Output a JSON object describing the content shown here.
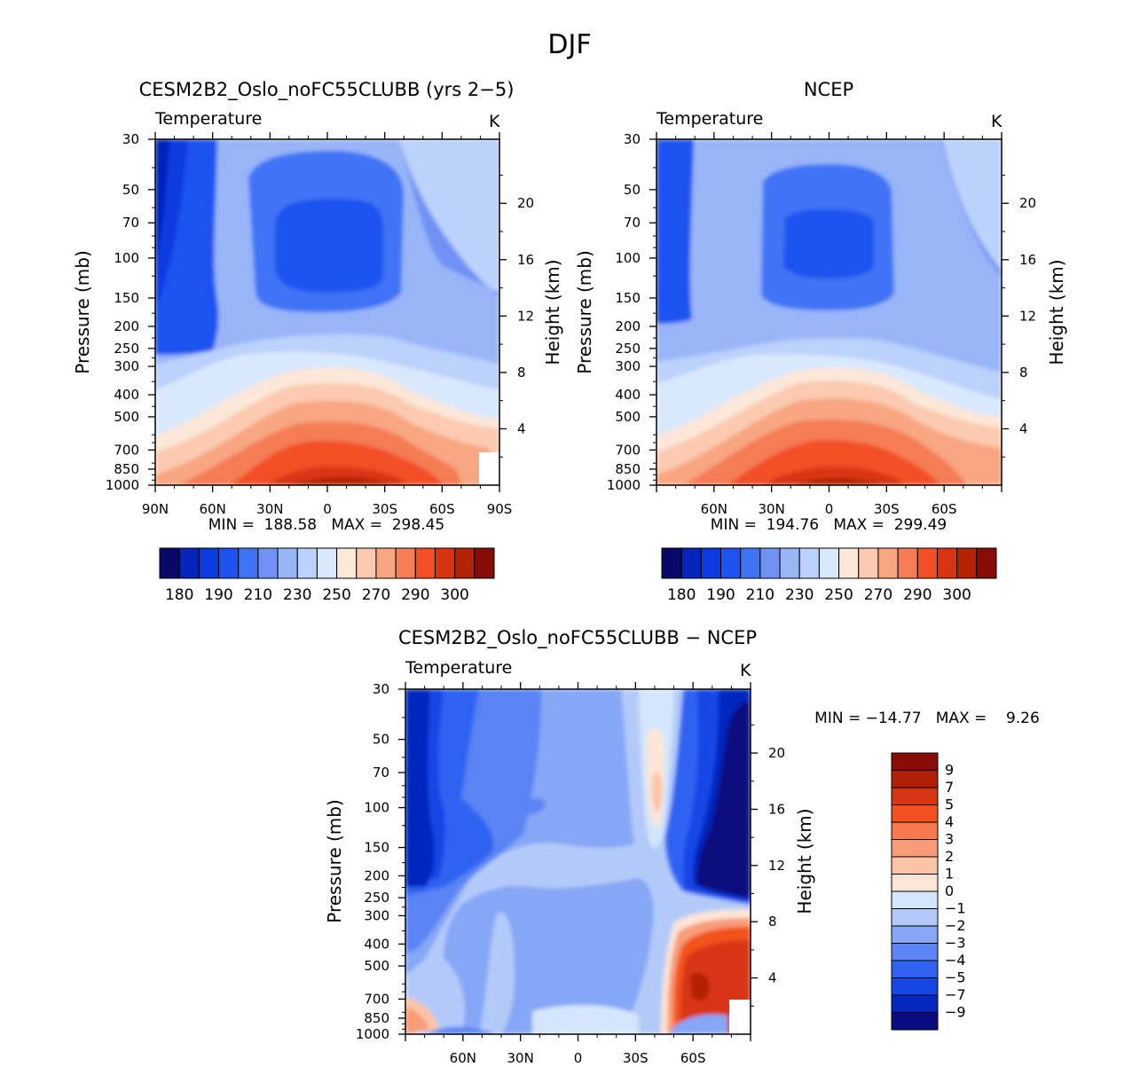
{
  "figure": {
    "title": "DJF"
  },
  "colors": {
    "abs": [
      "#08086b",
      "#0624bb",
      "#0a3ae0",
      "#1e52f0",
      "#3f73f5",
      "#7092f5",
      "#98b5f8",
      "#bcd1fb",
      "#d9e8fc",
      "#fde7d8",
      "#fbcab0",
      "#f8a681",
      "#f57c55",
      "#f24f25",
      "#d83412",
      "#b42204",
      "#870d07"
    ],
    "diff": [
      "#0a0d80",
      "#0628c0",
      "#1546e6",
      "#2f63f2",
      "#5a83f4",
      "#86a6f6",
      "#b3caf9",
      "#d4e6fb",
      "#fde5d6",
      "#fbc5a5",
      "#f89c78",
      "#f5784f",
      "#f2521f",
      "#d83612",
      "#b22006",
      "#8a0c08"
    ]
  },
  "chart_data": [
    {
      "type": "contour",
      "panel_title": "CESM2B2_Oslo_noFC55CLUBB (yrs 2−5)",
      "variable": "Temperature",
      "units": "K",
      "x_tick_labels": [
        "90N",
        "60N",
        "30N",
        "0",
        "30S",
        "60S",
        "90S"
      ],
      "xlim": [
        90,
        -90
      ],
      "ylabel": "Pressure (mb)",
      "y_ticks": [
        30,
        50,
        70,
        100,
        150,
        200,
        250,
        300,
        400,
        500,
        700,
        850,
        1000
      ],
      "ylim": [
        30,
        1000
      ],
      "ylabel_right": "Height (km)",
      "height_ticks": [
        4,
        8,
        12,
        16,
        20
      ],
      "stats_text": "MIN =  188.58   MAX =  298.45",
      "min": 188.58,
      "max": 298.45,
      "levels": [
        180,
        185,
        190,
        200,
        210,
        220,
        230,
        240,
        250,
        260,
        270,
        280,
        290,
        295,
        300
      ],
      "colorbar_labels": [
        "180",
        "190",
        "210",
        "230",
        "250",
        "270",
        "290",
        "300"
      ]
    },
    {
      "type": "contour",
      "panel_title": "NCEP",
      "variable": "Temperature",
      "units": "K",
      "x_tick_labels": [
        "60N",
        "30N",
        "0",
        "30S",
        "60S"
      ],
      "xlim": [
        90,
        -90
      ],
      "ylabel": "Pressure (mb)",
      "y_ticks": [
        30,
        50,
        70,
        100,
        150,
        200,
        250,
        300,
        400,
        500,
        700,
        850,
        1000
      ],
      "ylim": [
        30,
        1000
      ],
      "ylabel_right": "Height (km)",
      "height_ticks": [
        4,
        8,
        12,
        16,
        20
      ],
      "stats_text": "MIN =  194.76   MAX =  299.49",
      "min": 194.76,
      "max": 299.49,
      "levels": [
        180,
        185,
        190,
        200,
        210,
        220,
        230,
        240,
        250,
        260,
        270,
        280,
        290,
        295,
        300
      ],
      "colorbar_labels": [
        "180",
        "190",
        "210",
        "230",
        "250",
        "270",
        "290",
        "300"
      ]
    },
    {
      "type": "contour",
      "panel_title": "CESM2B2_Oslo_noFC55CLUBB − NCEP",
      "variable": "Temperature",
      "units": "K",
      "x_tick_labels": [
        "60N",
        "30N",
        "0",
        "30S",
        "60S"
      ],
      "xlim": [
        90,
        -90
      ],
      "ylabel": "Pressure (mb)",
      "y_ticks": [
        30,
        50,
        70,
        100,
        150,
        200,
        250,
        300,
        400,
        500,
        700,
        850,
        1000
      ],
      "ylim": [
        30,
        1000
      ],
      "ylabel_right": "Height (km)",
      "height_ticks": [
        4,
        8,
        12,
        16,
        20
      ],
      "stats_text": "MIN = −14.77   MAX =    9.26",
      "min": -14.77,
      "max": 9.26,
      "levels": [
        -9,
        -7,
        -5,
        -4,
        -3,
        -2,
        -1,
        0,
        1,
        2,
        3,
        4,
        5,
        7,
        9
      ],
      "colorbar_labels": [
        "9",
        "7",
        "5",
        "4",
        "3",
        "2",
        "1",
        "0",
        "−1",
        "−2",
        "−3",
        "−4",
        "−5",
        "−7",
        "−9"
      ]
    }
  ]
}
